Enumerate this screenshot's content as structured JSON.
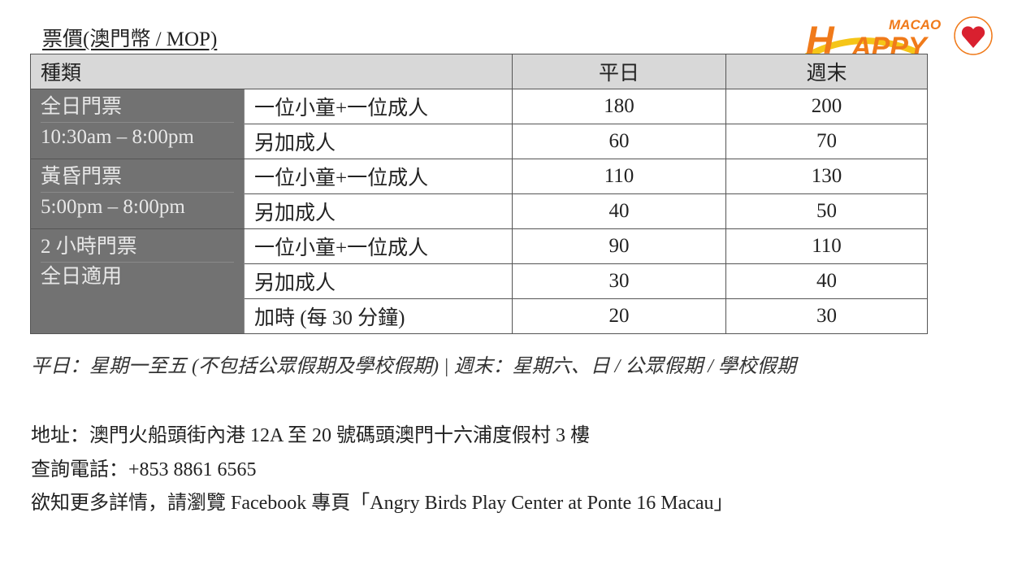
{
  "title": "票價(澳門幣 / MOP)",
  "logo": {
    "text": "HAPPY",
    "sub": "MACAO",
    "colors": {
      "orange": "#f07a1a",
      "yellow": "#f5c518",
      "heart": "#d9202f"
    }
  },
  "table": {
    "headers": [
      "種類",
      "平日",
      "週末"
    ],
    "groups": [
      {
        "name": "全日門票",
        "time": "10:30am – 8:00pm",
        "rows": [
          {
            "item": "一位小童+一位成人",
            "weekday": "180",
            "weekend": "200"
          },
          {
            "item": "另加成人",
            "weekday": "60",
            "weekend": "70"
          }
        ]
      },
      {
        "name": "黃昏門票",
        "time": "5:00pm – 8:00pm",
        "rows": [
          {
            "item": "一位小童+一位成人",
            "weekday": "110",
            "weekend": "130"
          },
          {
            "item": "另加成人",
            "weekday": "40",
            "weekend": "50"
          }
        ]
      },
      {
        "name": "2 小時門票",
        "time": "全日適用",
        "rows": [
          {
            "item": "一位小童+一位成人",
            "weekday": "90",
            "weekend": "110"
          },
          {
            "item": "另加成人",
            "weekday": "30",
            "weekend": "40"
          },
          {
            "item": "加時 (每 30 分鐘)",
            "weekday": "20",
            "weekend": "30"
          }
        ]
      }
    ]
  },
  "note": "平日：星期一至五 (不包括公眾假期及學校假期) | 週末：星期六、日 / 公眾假期 / 學校假期",
  "info": {
    "address": "地址：澳門火船頭街內港 12A 至 20 號碼頭澳門十六浦度假村 3 樓",
    "phone": "查詢電話：+853 8861 6565",
    "facebook": "欲知更多詳情，請瀏覽 Facebook 專頁「Angry Birds Play Center at Ponte 16 Macau」"
  }
}
